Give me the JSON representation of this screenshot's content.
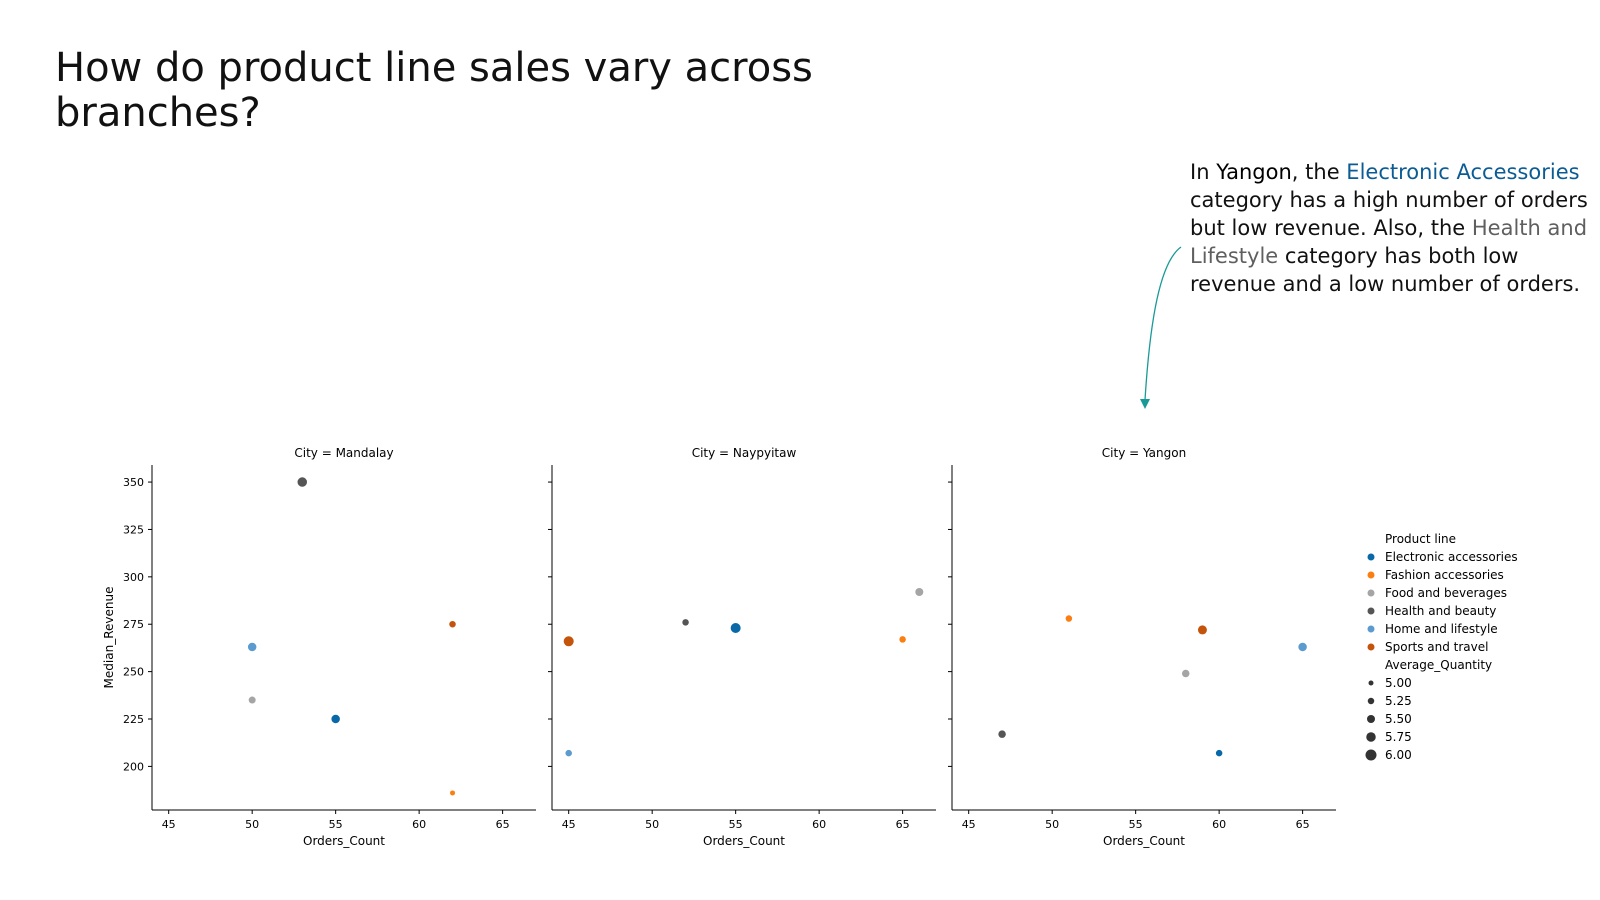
{
  "page": {
    "title": "How do product line sales vary across branches?"
  },
  "annotation": {
    "p1": "In ",
    "city": "Yangon",
    "p2": ", the ",
    "cat1": "Electronic Accessories",
    "p3": " category has a high number of orders but low revenue. Also, the ",
    "cat2": "Health and Lifestyle",
    "p4": " category has both low revenue and a low number of orders.",
    "arrow_color": "#1a9a96"
  },
  "chart_data": {
    "type": "scatter",
    "xlabel": "Orders_Count",
    "ylabel": "Median_Revenue",
    "xlim": [
      44,
      67
    ],
    "ylim": [
      177,
      359
    ],
    "xticks": [
      45,
      50,
      55,
      60,
      65
    ],
    "yticks": [
      200,
      225,
      250,
      275,
      300,
      325,
      350
    ],
    "hue_title": "Product line",
    "size_title": "Average_Quantity",
    "hue": [
      {
        "name": "Electronic accessories",
        "color": "#0868a8"
      },
      {
        "name": "Fashion accessories",
        "color": "#fb7e13"
      },
      {
        "name": "Food and beverages",
        "color": "#a5a5a5"
      },
      {
        "name": "Health and beauty",
        "color": "#555555"
      },
      {
        "name": "Home and lifestyle",
        "color": "#5b9bd0"
      },
      {
        "name": "Sports and travel",
        "color": "#c4540b"
      }
    ],
    "size_legend": [
      "5.00",
      "5.25",
      "5.50",
      "5.75",
      "6.00"
    ],
    "facets": [
      {
        "title": "City = Mandalay",
        "points": [
          {
            "category": "Health and beauty",
            "x": 53,
            "y": 350,
            "qty": 5.9
          },
          {
            "category": "Sports and travel",
            "x": 62,
            "y": 275,
            "qty": 5.3
          },
          {
            "category": "Home and lifestyle",
            "x": 50,
            "y": 263,
            "qty": 5.7
          },
          {
            "category": "Food and beverages",
            "x": 50,
            "y": 235,
            "qty": 5.4
          },
          {
            "category": "Electronic accessories",
            "x": 55,
            "y": 225,
            "qty": 5.7
          },
          {
            "category": "Fashion accessories",
            "x": 62,
            "y": 186,
            "qty": 5.0
          }
        ]
      },
      {
        "title": "City = Naypyitaw",
        "points": [
          {
            "category": "Food and beverages",
            "x": 66,
            "y": 292,
            "qty": 5.6
          },
          {
            "category": "Health and beauty",
            "x": 52,
            "y": 276,
            "qty": 5.3
          },
          {
            "category": "Electronic accessories",
            "x": 55,
            "y": 273,
            "qty": 6.0
          },
          {
            "category": "Fashion accessories",
            "x": 65,
            "y": 267,
            "qty": 5.3
          },
          {
            "category": "Sports and travel",
            "x": 45,
            "y": 266,
            "qty": 6.0
          },
          {
            "category": "Home and lifestyle",
            "x": 45,
            "y": 207,
            "qty": 5.3
          }
        ]
      },
      {
        "title": "City = Yangon",
        "points": [
          {
            "category": "Fashion accessories",
            "x": 51,
            "y": 278,
            "qty": 5.3
          },
          {
            "category": "Sports and travel",
            "x": 59,
            "y": 272,
            "qty": 5.8
          },
          {
            "category": "Home and lifestyle",
            "x": 65,
            "y": 263,
            "qty": 5.7
          },
          {
            "category": "Food and beverages",
            "x": 58,
            "y": 249,
            "qty": 5.5
          },
          {
            "category": "Health and beauty",
            "x": 47,
            "y": 217,
            "qty": 5.5
          },
          {
            "category": "Electronic accessories",
            "x": 60,
            "y": 207,
            "qty": 5.3
          }
        ]
      }
    ]
  }
}
